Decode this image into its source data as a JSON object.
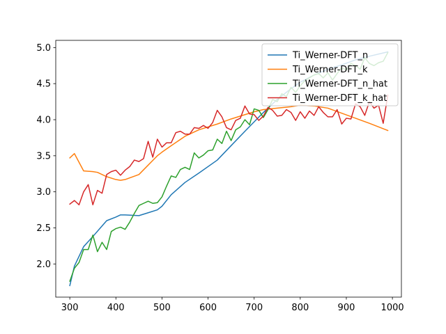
{
  "chart_data": {
    "type": "line",
    "title": "",
    "xlabel": "",
    "ylabel": "",
    "xlim": [
      269.5,
      1019.5
    ],
    "ylim": [
      1.54,
      5.1
    ],
    "xticks": [
      300,
      400,
      500,
      600,
      700,
      800,
      900,
      1000
    ],
    "yticks": [
      2.0,
      2.5,
      3.0,
      3.5,
      4.0,
      4.5,
      5.0
    ],
    "xtick_labels": [
      "300",
      "400",
      "500",
      "600",
      "700",
      "800",
      "900",
      "1000"
    ],
    "ytick_labels": [
      "2.0",
      "2.5",
      "3.0",
      "3.5",
      "4.0",
      "4.5",
      "5.0"
    ],
    "grid": false,
    "legend_position": "upper right",
    "series": [
      {
        "name": "Ti_Werner-DFT_n",
        "color": "#1f77b4",
        "x": [
          300,
          310,
          330,
          350,
          365,
          380,
          400,
          410,
          420,
          450,
          470,
          490,
          500,
          520,
          550,
          580,
          620,
          650,
          680,
          700,
          720,
          750,
          780,
          800,
          830,
          860,
          890,
          920,
          950,
          990
        ],
        "y": [
          1.7,
          1.97,
          2.24,
          2.38,
          2.49,
          2.6,
          2.65,
          2.68,
          2.68,
          2.67,
          2.71,
          2.75,
          2.8,
          2.96,
          3.13,
          3.26,
          3.44,
          3.64,
          3.84,
          3.97,
          4.1,
          4.28,
          4.43,
          4.52,
          4.62,
          4.7,
          4.76,
          4.83,
          4.88,
          4.94
        ]
      },
      {
        "name": "Ti_Werner-DFT_k",
        "color": "#ff7f0e",
        "x": [
          300,
          310,
          330,
          350,
          360,
          380,
          400,
          410,
          420,
          450,
          470,
          490,
          500,
          520,
          550,
          580,
          620,
          650,
          680,
          700,
          720,
          750,
          780,
          800,
          830,
          860,
          890,
          920,
          950,
          990
        ],
        "y": [
          3.47,
          3.53,
          3.29,
          3.28,
          3.27,
          3.21,
          3.17,
          3.16,
          3.17,
          3.24,
          3.37,
          3.5,
          3.55,
          3.64,
          3.77,
          3.86,
          3.94,
          4.01,
          4.07,
          4.11,
          4.14,
          4.16,
          4.18,
          4.2,
          4.19,
          4.16,
          4.09,
          4.02,
          3.95,
          3.85
        ]
      },
      {
        "name": "Ti_Werner-DFT_n_hat",
        "color": "#2ca02c",
        "x": [
          300,
          310,
          320,
          330,
          340,
          350,
          360,
          370,
          380,
          390,
          400,
          410,
          420,
          430,
          440,
          450,
          460,
          470,
          480,
          490,
          500,
          510,
          520,
          530,
          540,
          550,
          560,
          570,
          580,
          590,
          600,
          610,
          620,
          630,
          640,
          650,
          660,
          670,
          680,
          690,
          700,
          710,
          720,
          730,
          740,
          750,
          760,
          770,
          780,
          790,
          800,
          810,
          820,
          830,
          840,
          850,
          860,
          870,
          880,
          890,
          900,
          910,
          920,
          930,
          940,
          950,
          960,
          970,
          980,
          990
        ],
        "y": [
          1.76,
          1.94,
          2.02,
          2.2,
          2.2,
          2.4,
          2.17,
          2.3,
          2.2,
          2.45,
          2.49,
          2.51,
          2.48,
          2.58,
          2.7,
          2.81,
          2.84,
          2.87,
          2.84,
          2.85,
          2.93,
          3.08,
          3.22,
          3.2,
          3.31,
          3.34,
          3.31,
          3.54,
          3.47,
          3.51,
          3.57,
          3.58,
          3.73,
          3.67,
          3.84,
          3.71,
          3.86,
          3.9,
          4.0,
          3.93,
          4.15,
          4.13,
          4.03,
          4.14,
          4.28,
          4.25,
          4.36,
          4.32,
          4.45,
          4.38,
          4.47,
          4.54,
          4.58,
          4.62,
          4.64,
          4.58,
          4.65,
          4.55,
          4.64,
          4.72,
          4.69,
          4.78,
          4.75,
          4.7,
          4.86,
          4.78,
          4.75,
          4.79,
          4.81,
          4.93
        ]
      },
      {
        "name": "Ti_Werner-DFT_k_hat",
        "color": "#d62728",
        "x": [
          300,
          310,
          320,
          330,
          340,
          350,
          360,
          370,
          380,
          390,
          400,
          410,
          420,
          430,
          440,
          450,
          460,
          470,
          480,
          490,
          500,
          510,
          520,
          530,
          540,
          550,
          560,
          570,
          580,
          590,
          600,
          610,
          620,
          630,
          640,
          650,
          660,
          670,
          680,
          690,
          700,
          710,
          720,
          730,
          740,
          750,
          760,
          770,
          780,
          790,
          800,
          810,
          820,
          830,
          840,
          850,
          860,
          870,
          880,
          890,
          900,
          910,
          920,
          930,
          940,
          950,
          960,
          970,
          980,
          990
        ],
        "y": [
          2.83,
          2.88,
          2.82,
          3.0,
          3.1,
          2.82,
          3.02,
          2.98,
          3.24,
          3.28,
          3.3,
          3.23,
          3.3,
          3.35,
          3.44,
          3.42,
          3.46,
          3.7,
          3.48,
          3.73,
          3.62,
          3.68,
          3.68,
          3.82,
          3.84,
          3.8,
          3.8,
          3.89,
          3.88,
          3.92,
          3.88,
          3.96,
          4.13,
          4.04,
          3.89,
          3.86,
          3.99,
          4.02,
          4.19,
          4.08,
          4.07,
          3.99,
          4.05,
          4.17,
          4.13,
          4.05,
          4.06,
          4.14,
          4.1,
          3.99,
          4.11,
          4.02,
          4.12,
          4.06,
          4.18,
          4.1,
          4.04,
          4.04,
          4.14,
          3.94,
          4.02,
          4.01,
          4.22,
          4.18,
          4.06,
          4.25,
          4.16,
          4.2,
          3.95,
          4.34
        ]
      }
    ]
  }
}
